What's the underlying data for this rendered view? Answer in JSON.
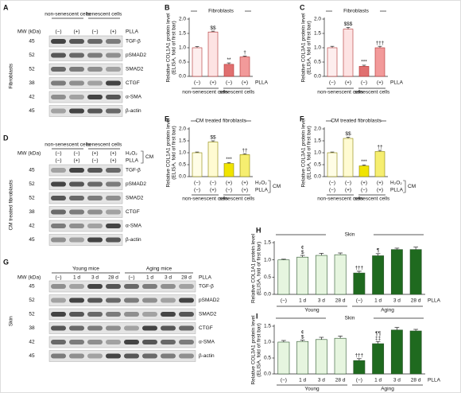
{
  "blots": [
    {
      "panel": "A",
      "groups": [
        "non-senescent cells",
        "senescent cells"
      ],
      "mw_label": "MW (kDa)",
      "lane_rows": [
        {
          "name": "PLLA",
          "labels": [
            "(−)",
            "(+)",
            "(−)",
            "(+)"
          ]
        }
      ],
      "rows": [
        {
          "mw": "45",
          "label": "TGF-β"
        },
        {
          "mw": "52",
          "label": "pSMAD2"
        },
        {
          "mw": "52",
          "label": "SMAD2"
        },
        {
          "mw": "38",
          "label": "CTGF"
        },
        {
          "mw": "42",
          "label": "α-SMA"
        },
        {
          "mw": "45",
          "label": "β-actin"
        }
      ],
      "side_label": "Fibroblasts"
    },
    {
      "panel": "D",
      "groups": [
        "non-senescent cells",
        "senescent cells"
      ],
      "mw_label": "MW (kDa)",
      "lane_rows": [
        {
          "name": "H₂O₂",
          "labels": [
            "(−)",
            "(−)",
            "(+)",
            "(+)"
          ]
        },
        {
          "name": "PLLA",
          "labels": [
            "(−)",
            "(+)",
            "(−)",
            "(+)"
          ]
        }
      ],
      "bracket_label": "CM",
      "rows": [
        {
          "mw": "45",
          "label": "TGF-β"
        },
        {
          "mw": "52",
          "label": "pSMAD2"
        },
        {
          "mw": "52",
          "label": "SMAD2"
        },
        {
          "mw": "38",
          "label": "CTGF"
        },
        {
          "mw": "42",
          "label": "α-SMA"
        },
        {
          "mw": "45",
          "label": "β-actin"
        }
      ],
      "side_label": "CM treated fibroblasts"
    },
    {
      "panel": "G",
      "groups": [
        "Young mice",
        "Aging mice"
      ],
      "mw_label": "MW (kDa)",
      "lane_rows": [
        {
          "name": "PLLA",
          "labels": [
            "(−)",
            "1 d",
            "3 d",
            "28 d",
            "(−)",
            "1 d",
            "3 d",
            "28 d"
          ]
        }
      ],
      "rows": [
        {
          "mw": "45",
          "label": "TGF-β"
        },
        {
          "mw": "52",
          "label": "pSMAD2"
        },
        {
          "mw": "52",
          "label": "SMAD2"
        },
        {
          "mw": "38",
          "label": "CTGF"
        },
        {
          "mw": "42",
          "label": "α-SMA"
        },
        {
          "mw": "45",
          "label": "β-actin"
        }
      ],
      "side_label": "Skin"
    }
  ],
  "chart_data": [
    {
      "type": "bar",
      "panel": "B",
      "title": "Fibroblasts",
      "ylabel": [
        "Relative COL1A1 protein level",
        "(ELISA, fold of first bar)"
      ],
      "values": [
        1.0,
        1.55,
        0.42,
        0.68
      ],
      "errors": [
        0.04,
        0.03,
        0.05,
        0.03
      ],
      "colors": [
        "#fdeeee",
        "#fde3e3",
        "#e07070",
        "#f29a9a"
      ],
      "edgecolor": "#b03030",
      "annotations": [
        null,
        [
          "$$"
        ],
        [
          "**"
        ],
        [
          "†"
        ]
      ],
      "category_rows": [
        {
          "name": "PLLA",
          "labels": [
            "(−)",
            "(+)",
            "(−)",
            "(+)"
          ]
        }
      ],
      "groups": [
        "non-senescent cells",
        "senescent cells"
      ],
      "ylim": [
        0,
        2
      ],
      "yticks": [
        {
          "value": 0,
          "label": "0.0"
        },
        {
          "value": 0.5,
          "label": "0.5"
        },
        {
          "value": 1,
          "label": "1.0"
        },
        {
          "value": 1.5,
          "label": "1.5"
        },
        {
          "value": 2,
          "label": "2.0"
        }
      ]
    },
    {
      "type": "bar",
      "panel": "C",
      "title": "Fibroblasts",
      "ylabel": [
        "Relative COL3A1 protein level",
        "(ELISA, fold of first bar)"
      ],
      "values": [
        1.0,
        1.65,
        0.35,
        1.0
      ],
      "errors": [
        0.05,
        0.06,
        0.04,
        0.05
      ],
      "colors": [
        "#fdeeee",
        "#fde3e3",
        "#e07070",
        "#f29a9a"
      ],
      "edgecolor": "#b03030",
      "annotations": [
        null,
        [
          "$$$"
        ],
        [
          "***"
        ],
        [
          "†††"
        ]
      ],
      "category_rows": [
        {
          "name": "PLLA",
          "labels": [
            "(−)",
            "(+)",
            "(−)",
            "(+)"
          ]
        }
      ],
      "groups": [
        "non-senescent cells",
        "senescent cells"
      ],
      "ylim": [
        0,
        2
      ],
      "yticks": [
        {
          "value": 0,
          "label": "0.0"
        },
        {
          "value": 0.5,
          "label": "0.5"
        },
        {
          "value": 1,
          "label": "1.0"
        },
        {
          "value": 1.5,
          "label": "1.5"
        },
        {
          "value": 2,
          "label": "2.0"
        }
      ]
    },
    {
      "type": "bar",
      "panel": "E",
      "title": "CM treated fibroblasts",
      "ylabel": [
        "Relative COL1A1 protein level",
        "(ELISA, fold of first bar)"
      ],
      "values": [
        1.0,
        1.45,
        0.55,
        0.92
      ],
      "errors": [
        0.03,
        0.05,
        0.04,
        0.04
      ],
      "colors": [
        "#fffde6",
        "#fffbd2",
        "#f0e400",
        "#f6ee70"
      ],
      "edgecolor": "#8a8200",
      "annotations": [
        null,
        [
          "$$"
        ],
        [
          "***"
        ],
        [
          "††"
        ]
      ],
      "category_rows": [
        {
          "name": "H₂O₂",
          "labels": [
            "(−)",
            "(−)",
            "(+)",
            "(+)"
          ]
        },
        {
          "name": "PLLA",
          "labels": [
            "(−)",
            "(+)",
            "(−)",
            "(+)"
          ]
        }
      ],
      "bracket_label": "CM",
      "groups": [
        "non-senescent cells",
        "senescent cells"
      ],
      "ylim": [
        0,
        2
      ],
      "yticks": [
        {
          "value": 0,
          "label": "0.0"
        },
        {
          "value": 0.5,
          "label": "0.5"
        },
        {
          "value": 1,
          "label": "1.0"
        },
        {
          "value": 1.5,
          "label": "1.5"
        },
        {
          "value": 2,
          "label": "2.0"
        }
      ]
    },
    {
      "type": "bar",
      "panel": "F",
      "title": "CM treated fibroblasts",
      "ylabel": [
        "Relative COL3A1 protein level",
        "(ELISA, fold of first bar)"
      ],
      "values": [
        1.0,
        1.6,
        0.45,
        1.05
      ],
      "errors": [
        0.03,
        0.05,
        0.04,
        0.05
      ],
      "colors": [
        "#fffde6",
        "#fffbd2",
        "#f0e400",
        "#f6ee70"
      ],
      "edgecolor": "#8a8200",
      "annotations": [
        null,
        [
          "$$"
        ],
        [
          "***"
        ],
        [
          "††"
        ]
      ],
      "category_rows": [
        {
          "name": "H₂O₂",
          "labels": [
            "(−)",
            "(−)",
            "(+)",
            "(+)"
          ]
        },
        {
          "name": "PLLA",
          "labels": [
            "(−)",
            "(+)",
            "(−)",
            "(+)"
          ]
        }
      ],
      "bracket_label": "CM",
      "groups": [
        "non-senescent cells",
        "senescent cells"
      ],
      "ylim": [
        0,
        2
      ],
      "yticks": [
        {
          "value": 0,
          "label": "0.0"
        },
        {
          "value": 0.5,
          "label": "0.5"
        },
        {
          "value": 1,
          "label": "1.0"
        },
        {
          "value": 1.5,
          "label": "1.5"
        },
        {
          "value": 2,
          "label": "2.0"
        }
      ]
    },
    {
      "type": "bar",
      "panel": "H",
      "title": "Skin",
      "ylabel": [
        "Relative COL1A1 protein level",
        "(ELISA, fold of first bar)"
      ],
      "values": [
        1.0,
        1.08,
        1.13,
        1.15,
        0.62,
        1.12,
        1.3,
        1.3
      ],
      "errors": [
        0.02,
        0.05,
        0.06,
        0.05,
        0.05,
        0.06,
        0.04,
        0.07
      ],
      "colors": [
        "#e6f5df",
        "#e6f5df",
        "#e6f5df",
        "#e6f5df",
        "#1f6a1f",
        "#1f6a1f",
        "#1f6a1f",
        "#1f6a1f"
      ],
      "edgecolor": "#2d552d",
      "annotations": [
        null,
        [
          "¢",
          "$"
        ],
        null,
        null,
        [
          "†††"
        ],
        [
          "¶"
        ],
        null,
        null
      ],
      "category_rows": [
        {
          "name": "PLLA",
          "labels": [
            "(−)",
            "1 d",
            "3 d",
            "28 d",
            "(−)",
            "1 d",
            "3 d",
            "28 d"
          ]
        }
      ],
      "groups": [
        "Young",
        "Aging"
      ],
      "ylim": [
        0,
        1.5
      ],
      "yticks": [
        {
          "value": 0,
          "label": "0.0"
        },
        {
          "value": 0.5,
          "label": "0.5"
        },
        {
          "value": 1,
          "label": "1.0"
        },
        {
          "value": 1.5,
          "label": "1.5"
        }
      ]
    },
    {
      "type": "bar",
      "panel": "I",
      "title": "Skin",
      "ylabel": [
        "Relative COL3A1 protein level",
        "(ELISA, fold of first bar)"
      ],
      "values": [
        1.0,
        1.02,
        1.08,
        1.12,
        0.42,
        0.95,
        1.38,
        1.35
      ],
      "errors": [
        0.05,
        0.04,
        0.07,
        0.07,
        0.06,
        0.07,
        0.08,
        0.05
      ],
      "colors": [
        "#e6f5df",
        "#e6f5df",
        "#e6f5df",
        "#e6f5df",
        "#1f6a1f",
        "#1f6a1f",
        "#1f6a1f",
        "#1f6a1f"
      ],
      "edgecolor": "#2d552d",
      "annotations": [
        null,
        [
          "¢",
          "$"
        ],
        null,
        null,
        [
          "†††"
        ],
        [
          "¶¶",
          "‡‡"
        ],
        null,
        null
      ],
      "category_rows": [
        {
          "name": "PLLA",
          "labels": [
            "(−)",
            "1 d",
            "3 d",
            "28 d",
            "(−)",
            "1 d",
            "3 d",
            "28 d"
          ]
        }
      ],
      "groups": [
        "Young",
        "Aging"
      ],
      "ylim": [
        0,
        1.5
      ],
      "yticks": [
        {
          "value": 0,
          "label": "0.0"
        },
        {
          "value": 0.5,
          "label": "0.5"
        },
        {
          "value": 1,
          "label": "1.0"
        },
        {
          "value": 1.5,
          "label": "1.5"
        }
      ]
    }
  ]
}
